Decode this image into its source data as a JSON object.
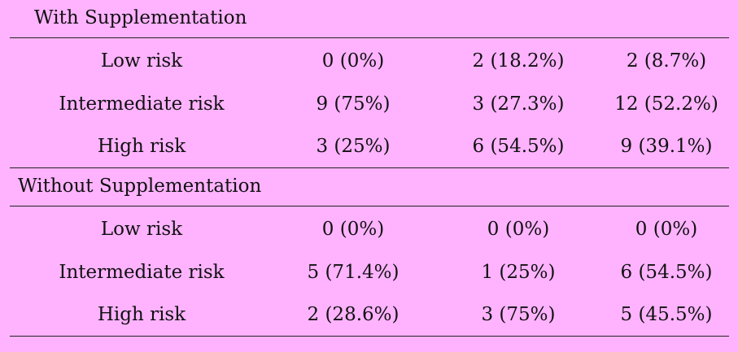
{
  "sections": [
    {
      "title": "With Supplementation",
      "rows": [
        {
          "label": "Low risk",
          "values": [
            "0 (0%)",
            "2 (18.2%)",
            "2 (8.7%)"
          ]
        },
        {
          "label": "Intermediate risk",
          "values": [
            "9 (75%)",
            "3 (27.3%)",
            "12 (52.2%)"
          ]
        },
        {
          "label": "High risk",
          "values": [
            "3 (25%)",
            "6 (54.5%)",
            "9 (39.1%)"
          ]
        }
      ]
    },
    {
      "title": "Without Supplementation",
      "rows": [
        {
          "label": "Low risk",
          "values": [
            "0 (0%)",
            "0 (0%)",
            "0 (0%)"
          ]
        },
        {
          "label": "Intermediate risk",
          "values": [
            "5 (71.4%)",
            "1 (25%)",
            "6 (54.5%)"
          ]
        },
        {
          "label": "High risk",
          "values": [
            "2 (28.6%)",
            "3 (75%)",
            "5 (45.5%)"
          ]
        }
      ]
    }
  ]
}
